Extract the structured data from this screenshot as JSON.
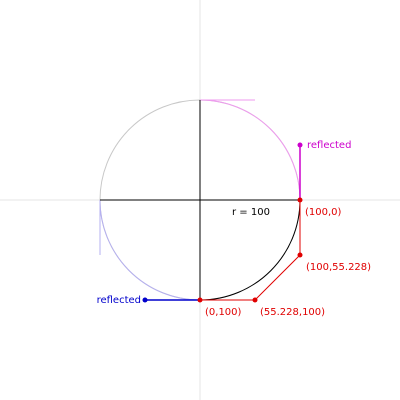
{
  "radius_label": "r = 100",
  "labels": {
    "p_100_0": "(100,0)",
    "p_100_55": "(100,55.228)",
    "p_55_100": "(55.228,100)",
    "p_0_100": "(0,100)",
    "reflected_top": "reflected",
    "reflected_left": "reflected"
  },
  "colors": {
    "axis_light": "#e6e6e6",
    "circle": "#c8c8c8",
    "radius_lines": "#000000",
    "arc_main": "#000000",
    "control_red": "#e00000",
    "reflected_magenta": "#cc00cc",
    "reflected_magenta_light": "#ef9aef",
    "reflected_blue": "#0000cc",
    "reflected_blue_light": "#b5b0f0"
  }
}
